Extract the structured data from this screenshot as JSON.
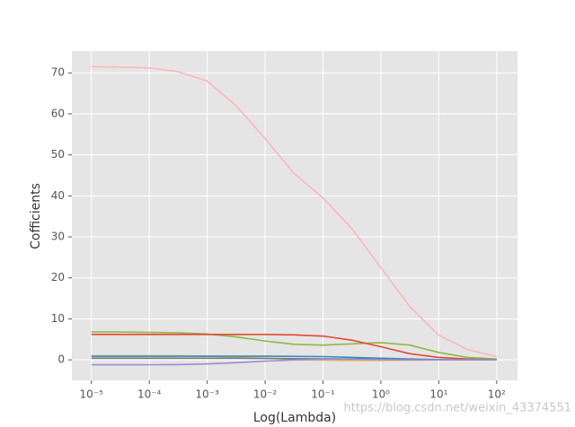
{
  "chart_data": {
    "type": "line",
    "x_label": "Log(Lambda)",
    "y_label": "Cofficients",
    "watermark": "https://blog.csdn.net/weixin_43374551",
    "x_log": true,
    "grid": true,
    "background": "#e5e5e5",
    "x": [
      1e-05,
      3.16e-05,
      0.0001,
      0.000316,
      0.001,
      0.00316,
      0.01,
      0.0316,
      0.1,
      0.316,
      1,
      3.16,
      10,
      31.6,
      100
    ],
    "xlim": [
      4.6e-06,
      229
    ],
    "xticks": [
      {
        "value": 1e-05,
        "label": "10⁻⁵"
      },
      {
        "value": 0.0001,
        "label": "10⁻⁴"
      },
      {
        "value": 0.001,
        "label": "10⁻³"
      },
      {
        "value": 0.01,
        "label": "10⁻²"
      },
      {
        "value": 0.1,
        "label": "10⁻¹"
      },
      {
        "value": 1,
        "label": "10⁰"
      },
      {
        "value": 10,
        "label": "10¹"
      },
      {
        "value": 100,
        "label": "10²"
      }
    ],
    "ylim": [
      -5,
      75.3
    ],
    "yticks": [
      0,
      10,
      20,
      30,
      40,
      50,
      60,
      70
    ],
    "series": [
      {
        "color": "#ffb5b8",
        "values": [
          71.5,
          71.4,
          71.2,
          70.3,
          68,
          62,
          54,
          45.5,
          39.5,
          32,
          22.5,
          13,
          6,
          2.5,
          0.8
        ]
      },
      {
        "color": "#8eba42",
        "values": [
          6.8,
          6.8,
          6.7,
          6.6,
          6.3,
          5.6,
          4.6,
          3.8,
          3.6,
          3.9,
          4.2,
          3.6,
          1.8,
          0.6,
          0.2
        ]
      },
      {
        "color": "#e24a33",
        "values": [
          6.2,
          6.2,
          6.2,
          6.2,
          6.2,
          6.2,
          6.2,
          6.1,
          5.8,
          4.8,
          3.2,
          1.5,
          0.6,
          0.2,
          0.05
        ]
      },
      {
        "color": "#fbc15e",
        "values": [
          1.0,
          1.0,
          1.0,
          1.0,
          0.9,
          0.7,
          0.4,
          0.1,
          -0.1,
          -0.2,
          -0.2,
          -0.1,
          0,
          0,
          0
        ]
      },
      {
        "color": "#348abd",
        "values": [
          0.9,
          0.9,
          0.9,
          0.9,
          0.9,
          0.9,
          0.9,
          0.85,
          0.8,
          0.6,
          0.4,
          0.2,
          0.05,
          0,
          0
        ]
      },
      {
        "color": "#777777",
        "values": [
          0.4,
          0.4,
          0.4,
          0.4,
          0.4,
          0.4,
          0.35,
          0.3,
          0.25,
          0.2,
          0.1,
          0.05,
          0,
          0,
          0
        ]
      },
      {
        "color": "#988ed5",
        "values": [
          -1.2,
          -1.2,
          -1.2,
          -1.15,
          -1.0,
          -0.7,
          -0.3,
          0,
          0.1,
          0.1,
          0.05,
          0,
          0,
          0,
          0
        ]
      }
    ]
  }
}
